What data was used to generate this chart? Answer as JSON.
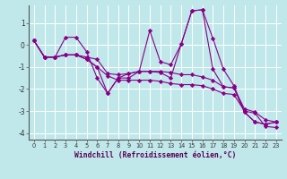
{
  "title": "Windchill (Refroidissement éolien,°C)",
  "background_color": "#c0e8ea",
  "line_color": "#880088",
  "xlim": [
    -0.5,
    23.5
  ],
  "ylim": [
    -4.3,
    1.8
  ],
  "yticks": [
    -4,
    -3,
    -2,
    -1,
    0,
    1
  ],
  "xticks": [
    0,
    1,
    2,
    3,
    4,
    5,
    6,
    7,
    8,
    9,
    10,
    11,
    12,
    13,
    14,
    15,
    16,
    17,
    18,
    19,
    20,
    21,
    22,
    23
  ],
  "series": [
    [
      0.2,
      -0.55,
      -0.55,
      0.35,
      0.35,
      -0.3,
      -1.5,
      -2.2,
      -1.5,
      -1.3,
      -1.2,
      0.65,
      -0.75,
      -0.9,
      0.05,
      1.55,
      1.6,
      0.3,
      -1.1,
      -1.85,
      -3.05,
      -3.5,
      -3.6,
      -3.5
    ],
    [
      0.2,
      -0.55,
      -0.55,
      -0.45,
      -0.45,
      -0.55,
      -0.65,
      -1.3,
      -1.35,
      -1.3,
      -1.2,
      -1.2,
      -1.2,
      -1.25,
      -1.35,
      -1.35,
      -1.45,
      -1.6,
      -1.9,
      -1.95,
      -2.9,
      -3.05,
      -3.4,
      -3.5
    ],
    [
      0.2,
      -0.55,
      -0.55,
      -0.45,
      -0.45,
      -0.65,
      -1.0,
      -1.4,
      -1.6,
      -1.6,
      -1.6,
      -1.6,
      -1.65,
      -1.75,
      -1.8,
      -1.8,
      -1.85,
      -2.0,
      -2.2,
      -2.25,
      -3.0,
      -3.1,
      -3.7,
      -3.75
    ],
    [
      0.2,
      -0.55,
      -0.55,
      -0.45,
      -0.45,
      -0.65,
      -1.0,
      -2.2,
      -1.5,
      -1.5,
      -1.2,
      -1.2,
      -1.25,
      -1.5,
      0.05,
      1.55,
      1.6,
      -1.1,
      -1.9,
      -1.95,
      -3.05,
      -3.5,
      -3.6,
      -3.5
    ]
  ]
}
